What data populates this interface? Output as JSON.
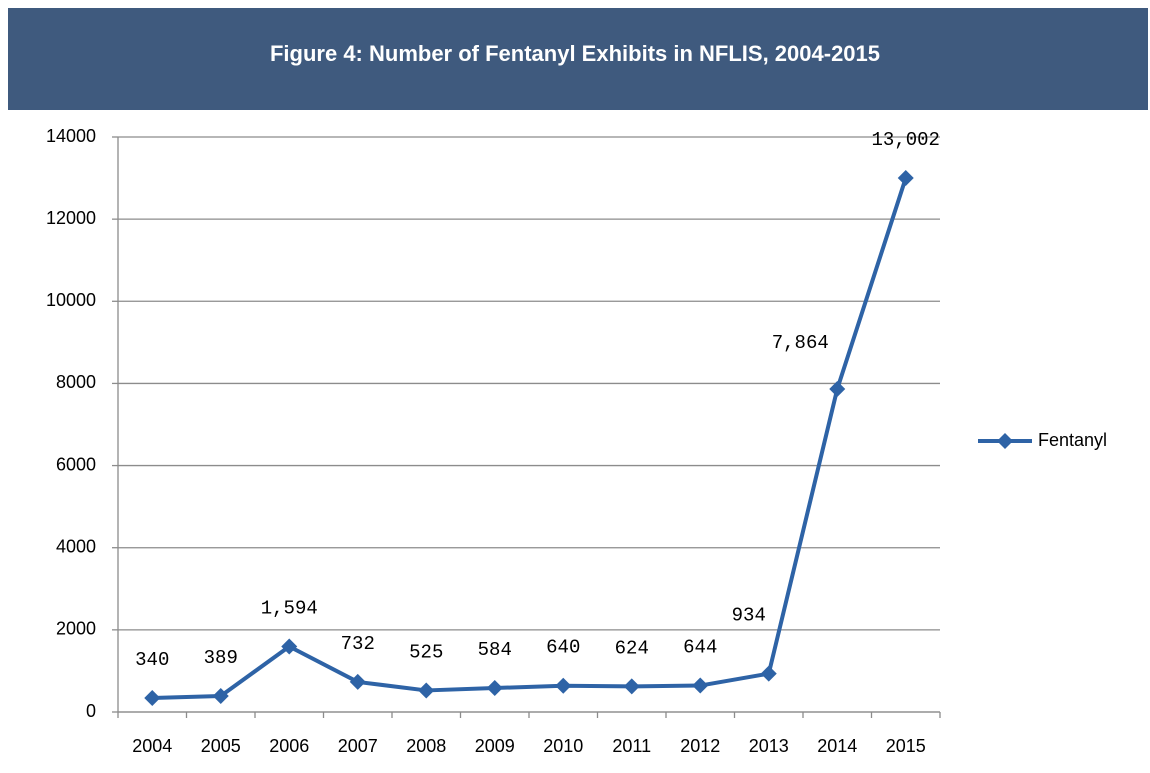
{
  "chart_data": {
    "type": "line",
    "title": "Figure 4:  Number of Fentanyl Exhibits in NFLIS, 2004-2015",
    "categories": [
      "2004",
      "2005",
      "2006",
      "2007",
      "2008",
      "2009",
      "2010",
      "2011",
      "2012",
      "2013",
      "2014",
      "2015"
    ],
    "series": [
      {
        "name": "Fentanyl",
        "color": "#2e63a6",
        "values": [
          340,
          389,
          1594,
          732,
          525,
          584,
          640,
          624,
          644,
          934,
          7864,
          13002
        ],
        "value_labels": [
          "340",
          "389",
          "1,594",
          "732",
          "525",
          "584",
          "640",
          "624",
          "644",
          "934",
          "7,864",
          "13,002"
        ]
      }
    ],
    "ylim": [
      0,
      14000
    ],
    "yticks": [
      0,
      2000,
      4000,
      6000,
      8000,
      10000,
      12000,
      14000
    ],
    "grid": true,
    "legend": "right"
  }
}
